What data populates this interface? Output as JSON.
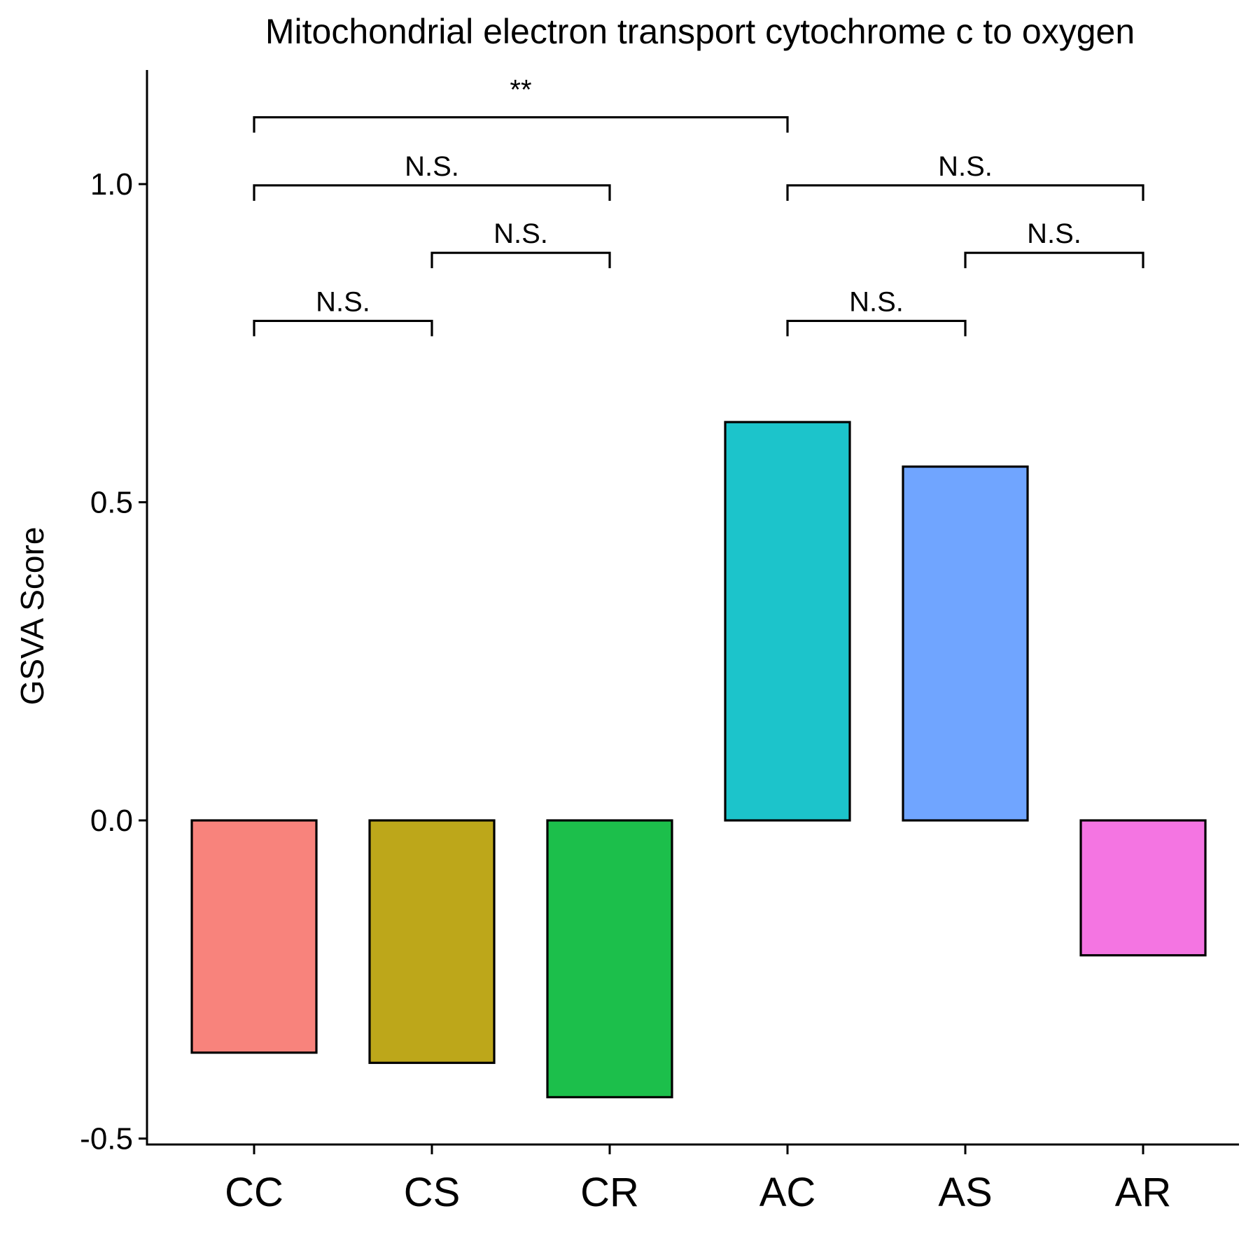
{
  "chart_data": {
    "type": "bar",
    "title": "Mitochondrial electron transport cytochrome c to oxygen",
    "xlabel": "",
    "ylabel": "GSVA Score",
    "categories": [
      "CC",
      "CS",
      "CR",
      "AC",
      "AS",
      "AR"
    ],
    "values": [
      -0.365,
      -0.381,
      -0.435,
      0.626,
      0.556,
      -0.212
    ],
    "colors": [
      "#F8837C",
      "#BDA71A",
      "#1CBF4B",
      "#1CC4CB",
      "#70A5FF",
      "#F475E2"
    ],
    "ylim": [
      -0.51,
      1.175
    ],
    "yticks": [
      -0.5,
      0.0,
      0.5,
      1.0
    ],
    "ytick_labels": [
      "-0.5",
      "0.0",
      "0.5",
      "1.0"
    ],
    "grid": false,
    "legend": "none",
    "comparisons": [
      {
        "from": "CC",
        "to": "CS",
        "label": "N.S.",
        "y": 0.785
      },
      {
        "from": "CS",
        "to": "CR",
        "label": "N.S.",
        "y": 0.892
      },
      {
        "from": "CC",
        "to": "CR",
        "label": "N.S.",
        "y": 0.998
      },
      {
        "from": "AC",
        "to": "AS",
        "label": "N.S.",
        "y": 0.785
      },
      {
        "from": "AS",
        "to": "AR",
        "label": "N.S.",
        "y": 0.892
      },
      {
        "from": "AC",
        "to": "AR",
        "label": "N.S.",
        "y": 0.998
      },
      {
        "from": "CC",
        "to": "AC",
        "label": "**",
        "y": 1.105
      }
    ]
  }
}
